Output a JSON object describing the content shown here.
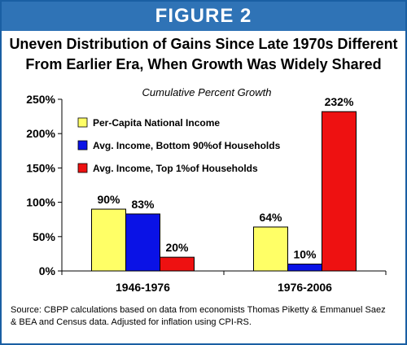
{
  "figure_label": "FIGURE 2",
  "title_line1": "Uneven Distribution of Gains Since Late 1970s Different",
  "title_line2": "From Earlier Era, When Growth Was Widely Shared",
  "source_text": "Source:  CBPP calculations based on data from economists Thomas Piketty & Emmanuel Saez & BEA and Census data.  Adjusted for inflation using CPI-RS.",
  "colors": {
    "banner": "#2f73b6",
    "border": "#1a5fa3"
  },
  "chart_data": {
    "type": "bar",
    "subtitle": "Cumulative Percent Growth",
    "categories": [
      "1946-1976",
      "1976-2006"
    ],
    "series": [
      {
        "name": "Per-Capita National Income",
        "values": [
          90,
          64
        ],
        "labels": [
          "90%",
          "64%"
        ],
        "color": "#ffff66"
      },
      {
        "name": "Avg. Income, Bottom 90%of Households",
        "values": [
          83,
          10
        ],
        "labels": [
          "83%",
          "10%"
        ],
        "color": "#0a12e6"
      },
      {
        "name": "Avg. Income, Top 1%of Households",
        "values": [
          20,
          232
        ],
        "labels": [
          "20%",
          "232%"
        ],
        "color": "#ee1111"
      }
    ],
    "ylim": [
      0,
      250
    ],
    "yticks": [
      0,
      50,
      100,
      150,
      200,
      250
    ],
    "ytick_labels": [
      "0%",
      "50%",
      "100%",
      "150%",
      "200%",
      "250%"
    ],
    "legend_position": "top-left",
    "grid": false
  }
}
